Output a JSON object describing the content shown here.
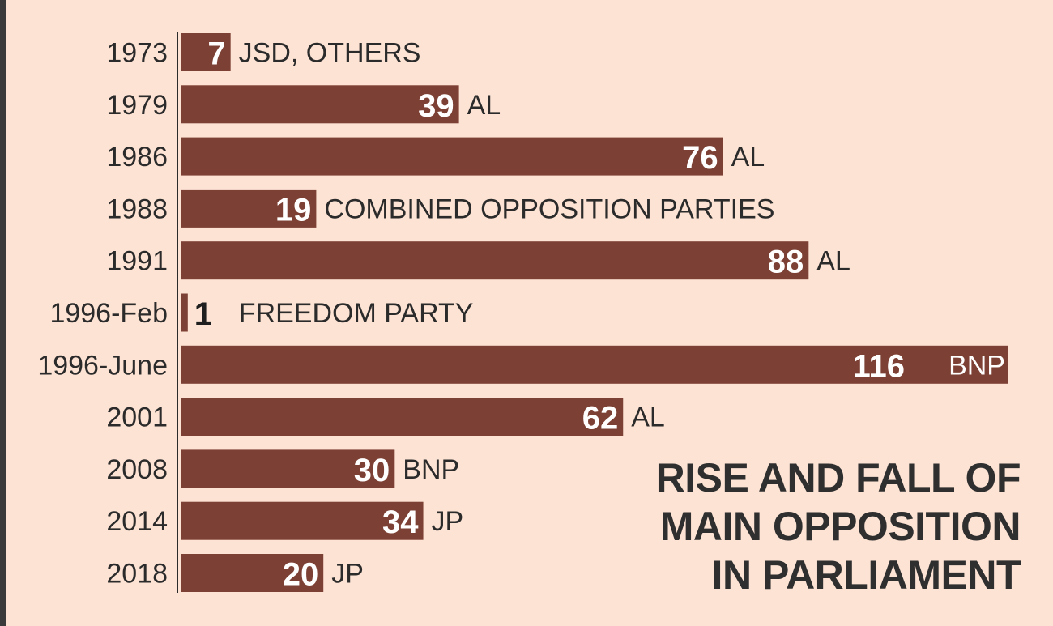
{
  "chart_data": {
    "type": "bar",
    "orientation": "horizontal",
    "title_lines": [
      "RISE AND FALL OF",
      "MAIN OPPOSITION",
      "IN PARLIAMENT"
    ],
    "categories": [
      "1973",
      "1979",
      "1986",
      "1988",
      "1991",
      "1996-Feb",
      "1996-June",
      "2001",
      "2008",
      "2014",
      "2018"
    ],
    "values": [
      7,
      39,
      76,
      19,
      88,
      1,
      116,
      62,
      30,
      34,
      20
    ],
    "parties": [
      "JSD, OTHERS",
      "AL",
      "AL",
      "COMBINED OPPOSITION PARTIES",
      "AL",
      "FREEDOM PARTY",
      "BNP",
      "AL",
      "BNP",
      "JP",
      "JP"
    ],
    "xlim": [
      0,
      116
    ],
    "bar_color": "#7d4034",
    "background_color": "#fde3d4"
  }
}
